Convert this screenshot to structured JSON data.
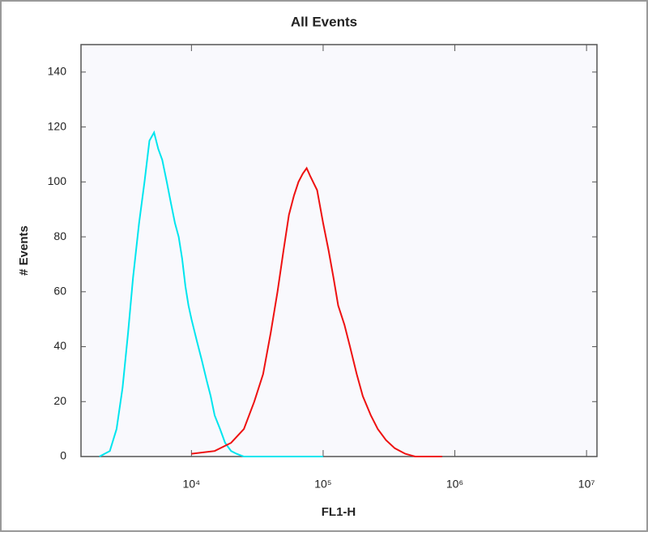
{
  "chart_data": {
    "type": "line",
    "title": "All Events",
    "x_label": "FL1-H",
    "y_label": "# Events",
    "log_x": true,
    "xlim": [
      1450,
      12000000
    ],
    "ylim": [
      0,
      150
    ],
    "xticks": [
      {
        "value": 10000,
        "label": "10⁴"
      },
      {
        "value": 100000,
        "label": "10⁵"
      },
      {
        "value": 1000000,
        "label": "10⁶"
      },
      {
        "value": 10000000,
        "label": "10⁷"
      }
    ],
    "yticks": [
      0,
      20,
      40,
      60,
      80,
      100,
      120,
      140
    ],
    "series": [
      {
        "name": "cyan",
        "color": "#00e5ee",
        "x": [
          2000,
          2400,
          2700,
          3000,
          3300,
          3600,
          4000,
          4400,
          4800,
          5200,
          5600,
          6000,
          6500,
          7000,
          7500,
          8000,
          8500,
          9000,
          9500,
          10000,
          11000,
          12000,
          13000,
          14000,
          15000,
          16500,
          18000,
          20000,
          22000,
          25000,
          40000,
          100000
        ],
        "values": [
          0,
          2,
          10,
          25,
          45,
          65,
          85,
          100,
          115,
          118,
          112,
          108,
          100,
          92,
          85,
          80,
          72,
          62,
          55,
          50,
          42,
          35,
          28,
          22,
          15,
          10,
          5,
          2,
          1,
          0,
          0,
          0
        ]
      },
      {
        "name": "red",
        "color": "#ee1111",
        "x": [
          10000,
          15000,
          20000,
          25000,
          30000,
          35000,
          40000,
          45000,
          50000,
          55000,
          60000,
          65000,
          70000,
          75000,
          80000,
          90000,
          100000,
          110000,
          120000,
          130000,
          145000,
          160000,
          180000,
          200000,
          230000,
          260000,
          300000,
          350000,
          420000,
          500000,
          800000
        ],
        "values": [
          1,
          2,
          5,
          10,
          20,
          30,
          45,
          60,
          75,
          88,
          95,
          100,
          103,
          105,
          102,
          97,
          85,
          75,
          65,
          55,
          48,
          40,
          30,
          22,
          15,
          10,
          6,
          3,
          1,
          0,
          0
        ]
      }
    ]
  }
}
